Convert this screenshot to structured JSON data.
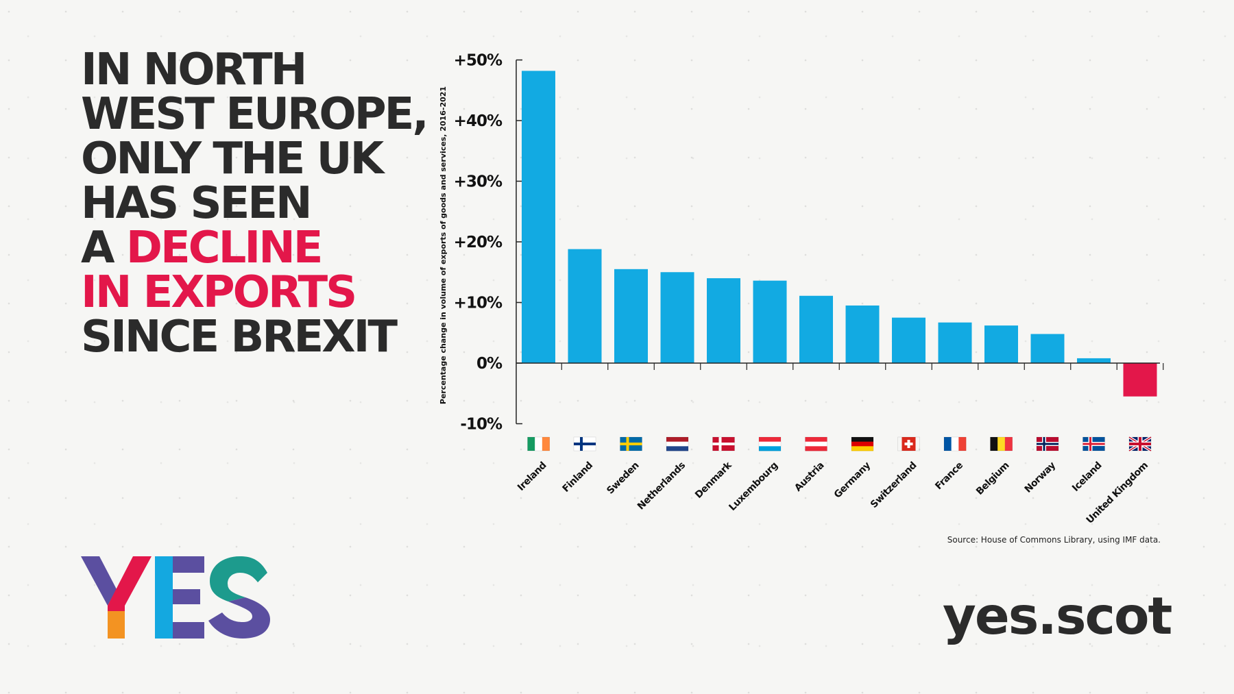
{
  "headline": {
    "lines": [
      "IN NORTH",
      "WEST EUROPE,",
      "ONLY THE UK",
      "HAS SEEN"
    ],
    "line5_prefix": "A ",
    "line5_highlight": "DECLINE",
    "line6_highlight": "IN EXPORTS",
    "line7": "SINCE BREXIT",
    "highlight_color": "#e3174a"
  },
  "logo": {
    "letters": [
      "Y",
      "E",
      "S"
    ],
    "colors": {
      "orange": "#f39322",
      "red": "#e3174a",
      "purple": "#5b4fa0",
      "blue": "#14a8e0",
      "teal": "#1d9b8d"
    }
  },
  "site_url": "yes.scot",
  "source": "Source: House of Commons Library, using IMF data.",
  "chart_data": {
    "type": "bar",
    "categories": [
      "Ireland",
      "Finland",
      "Sweden",
      "Netherlands",
      "Denmark",
      "Luxembourg",
      "Austria",
      "Germany",
      "Switzerland",
      "France",
      "Belgium",
      "Norway",
      "Iceland",
      "United Kingdom"
    ],
    "values": [
      48.2,
      18.8,
      15.5,
      15.0,
      14.0,
      13.6,
      11.1,
      9.5,
      7.5,
      6.7,
      6.2,
      4.8,
      0.8,
      -5.5
    ],
    "flags": [
      "flag-ireland",
      "flag-finland",
      "flag-sweden",
      "flag-netherlands",
      "flag-denmark",
      "flag-luxembourg",
      "flag-austria",
      "flag-germany",
      "flag-switzerland",
      "flag-france",
      "flag-belgium",
      "flag-norway",
      "flag-iceland",
      "flag-united-kingdom"
    ],
    "ylabel": "Percentage change in volume of exports of goods and services, 2016-2021",
    "yticks": [
      50,
      40,
      30,
      20,
      10,
      0,
      -10
    ],
    "ytick_labels": [
      "+50%",
      "+40%",
      "+30%",
      "+20%",
      "+10%",
      "0%",
      "-10%"
    ],
    "ylim": [
      -10,
      50
    ],
    "grid": false,
    "colors": {
      "positive": "#12aae2",
      "negative": "#e3174a",
      "axis": "#222222"
    }
  }
}
